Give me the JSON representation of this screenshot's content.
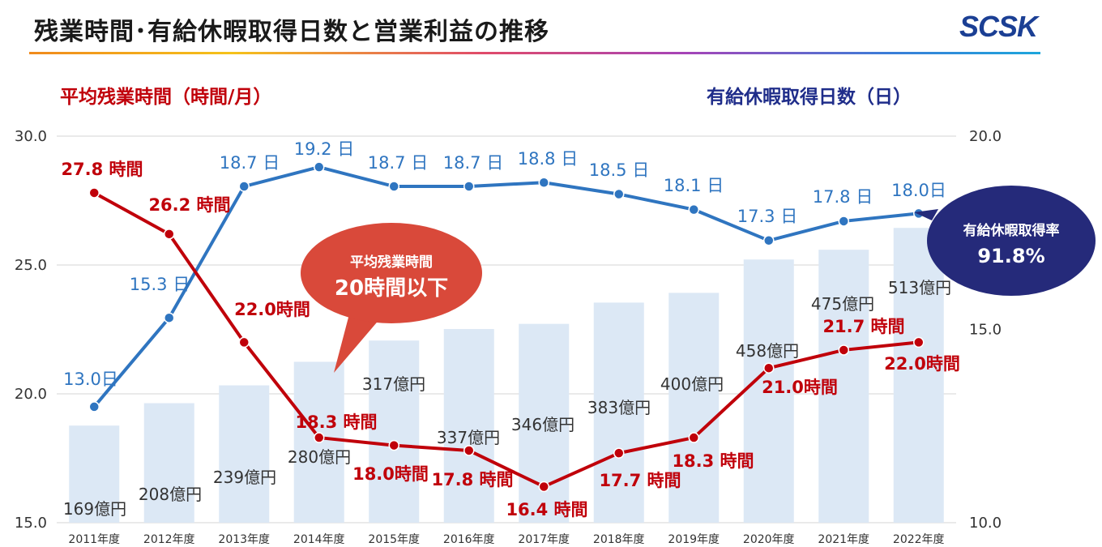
{
  "page": {
    "title": "残業時間･有給休暇取得日数と営業利益の推移",
    "logo": "SCSK"
  },
  "colors": {
    "overtime": "#c0000a",
    "leave": "#2f75c0",
    "bars": "#dce8f5",
    "rate_badge": "#252a7a",
    "callout": "#d9493a"
  },
  "chart_data": {
    "type": "bar+line",
    "categories": [
      "2011年度",
      "2012年度",
      "2013年度",
      "2014年度",
      "2015年度",
      "2016年度",
      "2017年度",
      "2018年度",
      "2019年度",
      "2020年度",
      "2021年度",
      "2022年度"
    ],
    "left_axis": {
      "title": "平均残業時間（時間/月）",
      "min": 15,
      "max": 30,
      "ticks": [
        "15.0",
        "20.0",
        "25.0",
        "30.0"
      ],
      "tick_values": [
        15,
        20,
        25,
        30
      ]
    },
    "right_axis": {
      "title": "有給休暇取得日数（日）",
      "min": 10,
      "max": 20,
      "ticks": [
        "10.0",
        "15.0",
        "20.0"
      ],
      "tick_values": [
        10,
        15,
        20
      ]
    },
    "series": [
      {
        "name": "営業利益",
        "kind": "bar",
        "unit": "億円",
        "values": [
          169,
          208,
          239,
          280,
          317,
          337,
          346,
          383,
          400,
          458,
          475,
          513
        ],
        "labels": [
          "169億円",
          "208億円",
          "239億円",
          "280億円",
          "317億円",
          "337億円",
          "346億円",
          "383億円",
          "400億円",
          "458億円",
          "475億円",
          "513億円"
        ]
      },
      {
        "name": "平均残業時間",
        "kind": "line",
        "axis": "left",
        "values": [
          27.8,
          26.2,
          22.0,
          18.3,
          18.0,
          17.8,
          16.4,
          17.7,
          18.3,
          21.0,
          21.7,
          22.0
        ],
        "labels": [
          "27.8 時間",
          "26.2 時間",
          "22.0時間",
          "18.3 時間",
          "18.0時間",
          "17.8 時間",
          "16.4 時間",
          "17.7 時間",
          "18.3 時間",
          "21.0時間",
          "21.7 時間",
          "22.0時間"
        ]
      },
      {
        "name": "有給休暇取得日数",
        "kind": "line",
        "axis": "right",
        "values": [
          13.0,
          15.3,
          18.7,
          19.2,
          18.7,
          18.7,
          18.8,
          18.5,
          18.1,
          17.3,
          17.8,
          18.0
        ],
        "labels": [
          "13.0日",
          "15.3 日",
          "18.7 日",
          "19.2 日",
          "18.7 日",
          "18.7 日",
          "18.8 日",
          "18.5 日",
          "18.1 日",
          "17.3 日",
          "17.8 日",
          "18.0日"
        ]
      }
    ],
    "annotations": {
      "callout_line1": "平均残業時間",
      "callout_line2": "20時間以下",
      "rate_label": "有給休暇取得率",
      "rate_value": "91.8%"
    }
  }
}
